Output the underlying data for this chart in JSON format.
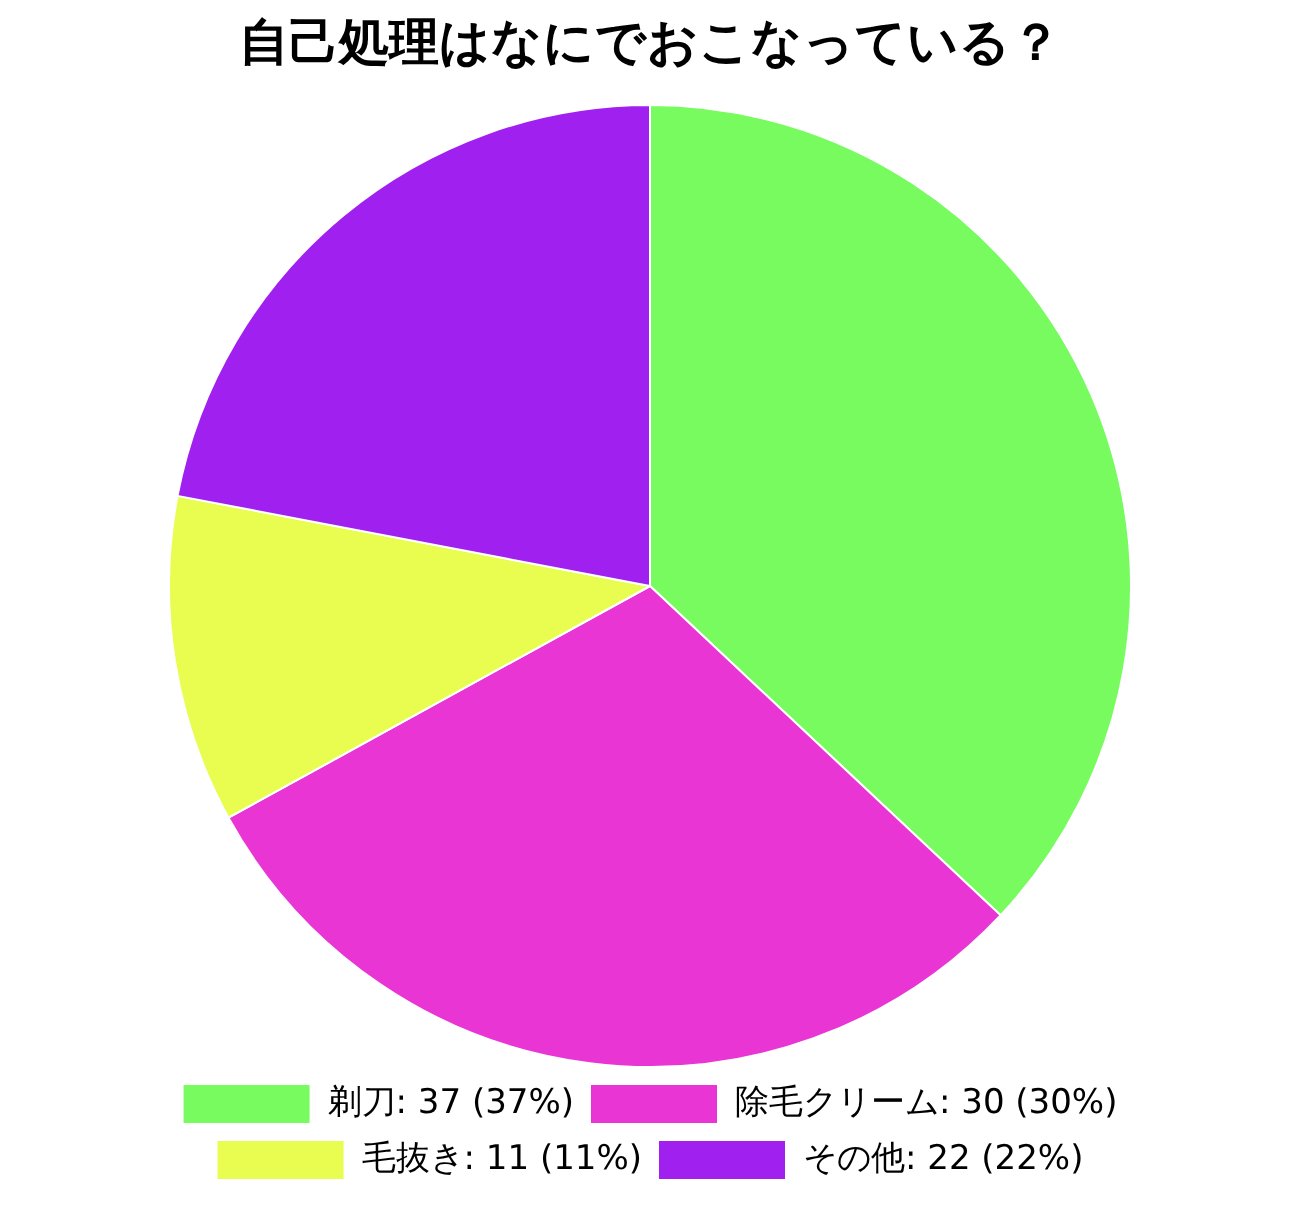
{
  "chart_data": {
    "type": "pie",
    "title": "自己処理はなにでおこなっている？",
    "categories": [
      "剃刀: 37 (37%)",
      "除毛クリーム: 30 (30%)",
      "毛抜き: 11 (11%)",
      "その他: 22 (22%)"
    ],
    "values": [
      37,
      30,
      11,
      22
    ],
    "colors": [
      "#77fb5f",
      "#e835d4",
      "#e8fd50",
      "#a020f0"
    ],
    "legend": "bottom"
  }
}
